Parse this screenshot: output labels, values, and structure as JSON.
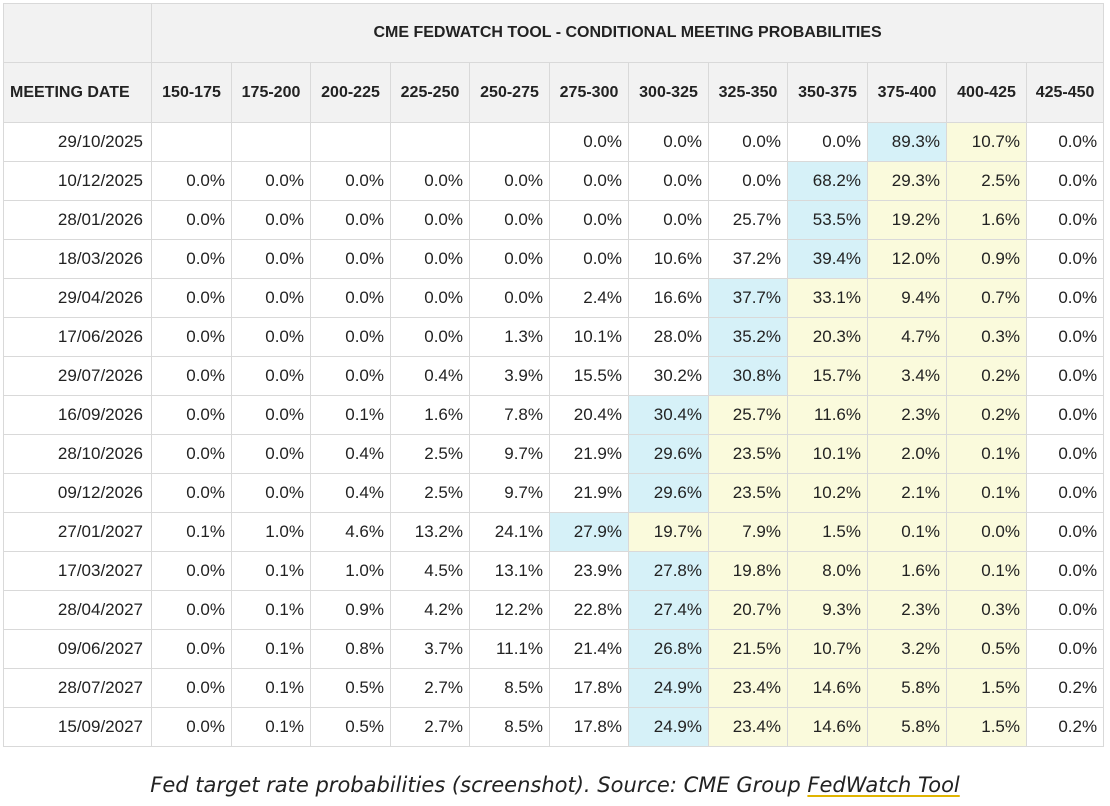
{
  "table": {
    "title": "CME FEDWATCH TOOL - CONDITIONAL MEETING PROBABILITIES",
    "date_header": "MEETING DATE",
    "columns": [
      "150-175",
      "175-200",
      "200-225",
      "225-250",
      "250-275",
      "275-300",
      "300-325",
      "325-350",
      "350-375",
      "375-400",
      "400-425",
      "425-450"
    ],
    "rows": [
      {
        "date": "29/10/2025",
        "values": [
          "",
          "",
          "",
          "",
          "",
          "0.0%",
          "0.0%",
          "0.0%",
          "0.0%",
          "89.3%",
          "10.7%",
          "0.0%"
        ]
      },
      {
        "date": "10/12/2025",
        "values": [
          "0.0%",
          "0.0%",
          "0.0%",
          "0.0%",
          "0.0%",
          "0.0%",
          "0.0%",
          "0.0%",
          "68.2%",
          "29.3%",
          "2.5%",
          "0.0%"
        ]
      },
      {
        "date": "28/01/2026",
        "values": [
          "0.0%",
          "0.0%",
          "0.0%",
          "0.0%",
          "0.0%",
          "0.0%",
          "0.0%",
          "25.7%",
          "53.5%",
          "19.2%",
          "1.6%",
          "0.0%"
        ]
      },
      {
        "date": "18/03/2026",
        "values": [
          "0.0%",
          "0.0%",
          "0.0%",
          "0.0%",
          "0.0%",
          "0.0%",
          "10.6%",
          "37.2%",
          "39.4%",
          "12.0%",
          "0.9%",
          "0.0%"
        ]
      },
      {
        "date": "29/04/2026",
        "values": [
          "0.0%",
          "0.0%",
          "0.0%",
          "0.0%",
          "0.0%",
          "2.4%",
          "16.6%",
          "37.7%",
          "33.1%",
          "9.4%",
          "0.7%",
          "0.0%"
        ]
      },
      {
        "date": "17/06/2026",
        "values": [
          "0.0%",
          "0.0%",
          "0.0%",
          "0.0%",
          "1.3%",
          "10.1%",
          "28.0%",
          "35.2%",
          "20.3%",
          "4.7%",
          "0.3%",
          "0.0%"
        ]
      },
      {
        "date": "29/07/2026",
        "values": [
          "0.0%",
          "0.0%",
          "0.0%",
          "0.4%",
          "3.9%",
          "15.5%",
          "30.2%",
          "30.8%",
          "15.7%",
          "3.4%",
          "0.2%",
          "0.0%"
        ]
      },
      {
        "date": "16/09/2026",
        "values": [
          "0.0%",
          "0.0%",
          "0.1%",
          "1.6%",
          "7.8%",
          "20.4%",
          "30.4%",
          "25.7%",
          "11.6%",
          "2.3%",
          "0.2%",
          "0.0%"
        ]
      },
      {
        "date": "28/10/2026",
        "values": [
          "0.0%",
          "0.0%",
          "0.4%",
          "2.5%",
          "9.7%",
          "21.9%",
          "29.6%",
          "23.5%",
          "10.1%",
          "2.0%",
          "0.1%",
          "0.0%"
        ]
      },
      {
        "date": "09/12/2026",
        "values": [
          "0.0%",
          "0.0%",
          "0.4%",
          "2.5%",
          "9.7%",
          "21.9%",
          "29.6%",
          "23.5%",
          "10.2%",
          "2.1%",
          "0.1%",
          "0.0%"
        ]
      },
      {
        "date": "27/01/2027",
        "values": [
          "0.1%",
          "1.0%",
          "4.6%",
          "13.2%",
          "24.1%",
          "27.9%",
          "19.7%",
          "7.9%",
          "1.5%",
          "0.1%",
          "0.0%",
          "0.0%"
        ]
      },
      {
        "date": "17/03/2027",
        "values": [
          "0.0%",
          "0.1%",
          "1.0%",
          "4.5%",
          "13.1%",
          "23.9%",
          "27.8%",
          "19.8%",
          "8.0%",
          "1.6%",
          "0.1%",
          "0.0%"
        ]
      },
      {
        "date": "28/04/2027",
        "values": [
          "0.0%",
          "0.1%",
          "0.9%",
          "4.2%",
          "12.2%",
          "22.8%",
          "27.4%",
          "20.7%",
          "9.3%",
          "2.3%",
          "0.3%",
          "0.0%"
        ]
      },
      {
        "date": "09/06/2027",
        "values": [
          "0.0%",
          "0.1%",
          "0.8%",
          "3.7%",
          "11.1%",
          "21.4%",
          "26.8%",
          "21.5%",
          "10.7%",
          "3.2%",
          "0.5%",
          "0.0%"
        ]
      },
      {
        "date": "28/07/2027",
        "values": [
          "0.0%",
          "0.1%",
          "0.5%",
          "2.7%",
          "8.5%",
          "17.8%",
          "24.9%",
          "23.4%",
          "14.6%",
          "5.8%",
          "1.5%",
          "0.2%"
        ]
      },
      {
        "date": "15/09/2027",
        "values": [
          "0.0%",
          "0.1%",
          "0.5%",
          "2.7%",
          "8.5%",
          "17.8%",
          "24.9%",
          "23.4%",
          "14.6%",
          "5.8%",
          "1.5%",
          "0.2%"
        ]
      }
    ],
    "highlight_colors": {
      "max": "#d6f1f8",
      "secondary": "#fafadc"
    }
  },
  "caption": {
    "text": "Fed target rate probabilities (screenshot). Source: CME Group ",
    "link": "FedWatch Tool"
  }
}
